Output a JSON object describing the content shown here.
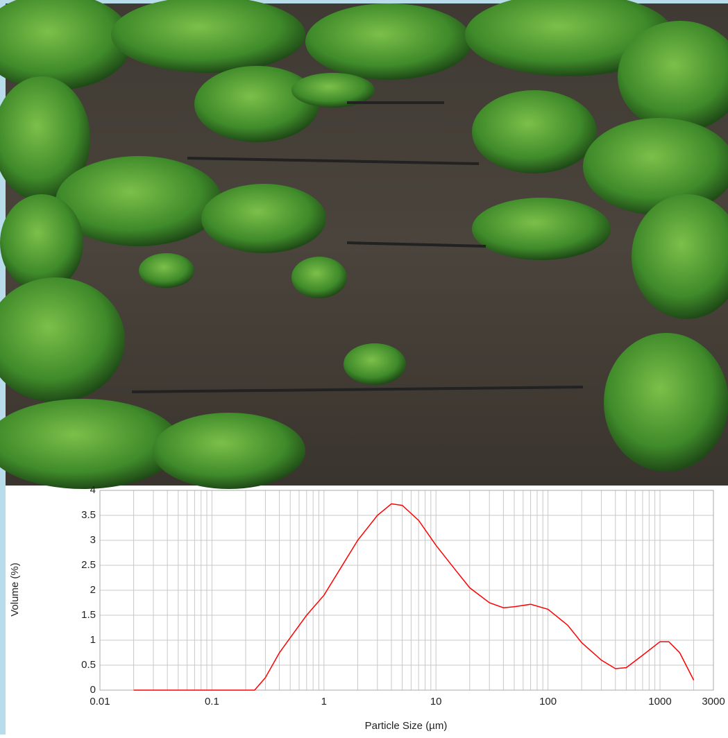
{
  "chart_data": {
    "type": "line",
    "x_label": "Particle Size (µm)",
    "y_label": "Volume (%)",
    "x": [
      0.02,
      0.05,
      0.1,
      0.2,
      0.24,
      0.3,
      0.4,
      0.5,
      0.7,
      1,
      2,
      3,
      4,
      5,
      7,
      10,
      15,
      20,
      30,
      40,
      50,
      70,
      100,
      150,
      200,
      300,
      400,
      500,
      700,
      1000,
      1200,
      1500,
      2000
    ],
    "series": [
      {
        "color": "#ff0000",
        "values": [
          0,
          0,
          0,
          0,
          0,
          0.25,
          0.75,
          1.05,
          1.5,
          1.9,
          3.0,
          3.5,
          3.73,
          3.7,
          3.4,
          2.9,
          2.4,
          2.05,
          1.75,
          1.65,
          1.67,
          1.72,
          1.62,
          1.3,
          0.95,
          0.6,
          0.43,
          0.45,
          0.7,
          0.97,
          0.97,
          0.75,
          0.2
        ]
      }
    ],
    "xlim": [
      0.01,
      3000
    ],
    "xticks": [
      0.01,
      0.1,
      1,
      10,
      100,
      1000,
      3000
    ],
    "x_log": true,
    "ylim": [
      0,
      4
    ],
    "yticks": [
      0,
      0.5,
      1,
      1.5,
      2,
      2.5,
      3,
      3.5,
      4
    ],
    "grid": true,
    "minor_grid": true
  }
}
